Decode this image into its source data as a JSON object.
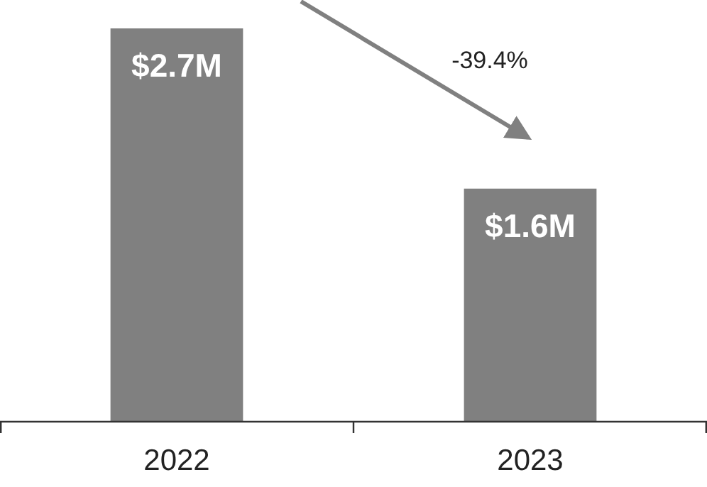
{
  "chart_data": {
    "type": "bar",
    "categories": [
      "2022",
      "2023"
    ],
    "values": [
      2.7,
      1.6
    ],
    "color": "#808080",
    "value_labels": [
      "$2.7M",
      "$1.6M"
    ],
    "annotations": [
      "-39.4%"
    ]
  }
}
